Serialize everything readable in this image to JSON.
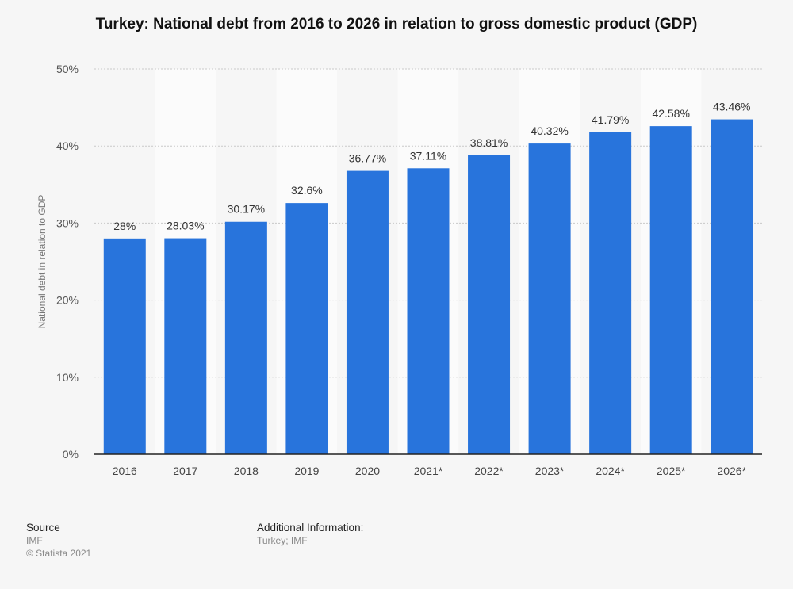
{
  "chart_data": {
    "type": "bar",
    "title": "Turkey: National debt from 2016 to 2026 in relation to gross domestic product (GDP)",
    "xlabel": "",
    "ylabel": "National debt in relation to GDP",
    "categories": [
      "2016",
      "2017",
      "2018",
      "2019",
      "2020",
      "2021*",
      "2022*",
      "2023*",
      "2024*",
      "2025*",
      "2026*"
    ],
    "values": [
      28,
      28.03,
      30.17,
      32.6,
      36.77,
      37.11,
      38.81,
      40.32,
      41.79,
      42.58,
      43.46
    ],
    "value_labels": [
      "28%",
      "28.03%",
      "30.17%",
      "32.6%",
      "36.77%",
      "37.11%",
      "38.81%",
      "40.32%",
      "41.79%",
      "42.58%",
      "43.46%"
    ],
    "ylim": [
      0,
      50
    ],
    "yticks": [
      0,
      10,
      20,
      30,
      40,
      50
    ],
    "ytick_labels": [
      "0%",
      "10%",
      "20%",
      "30%",
      "40%",
      "50%"
    ],
    "grid": true,
    "bar_color": "#2874dc"
  },
  "footer": {
    "source_heading": "Source",
    "source_lines": [
      "IMF",
      "© Statista 2021"
    ],
    "info_heading": "Additional Information:",
    "info_text": "Turkey; IMF"
  }
}
